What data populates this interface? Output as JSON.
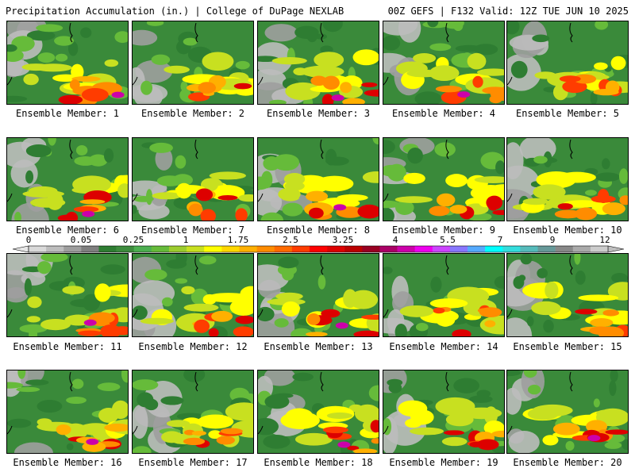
{
  "header": {
    "left": "Precipitation Accumulation (in.) | College of DuPage NEXLAB",
    "right": "00Z GEFS | F132 Valid: 12Z TUE JUN 10 2025"
  },
  "members": [
    {
      "label": "Ensemble Member: 1"
    },
    {
      "label": "Ensemble Member: 2"
    },
    {
      "label": "Ensemble Member: 3"
    },
    {
      "label": "Ensemble Member: 4"
    },
    {
      "label": "Ensemble Member: 5"
    },
    {
      "label": "Ensemble Member: 6"
    },
    {
      "label": "Ensemble Member: 7"
    },
    {
      "label": "Ensemble Member: 8"
    },
    {
      "label": "Ensemble Member: 9"
    },
    {
      "label": "Ensemble Member: 10"
    },
    {
      "label": "Ensemble Member: 11"
    },
    {
      "label": "Ensemble Member: 12"
    },
    {
      "label": "Ensemble Member: 13"
    },
    {
      "label": "Ensemble Member: 14"
    },
    {
      "label": "Ensemble Member: 15"
    },
    {
      "label": "Ensemble Member: 16"
    },
    {
      "label": "Ensemble Member: 17"
    },
    {
      "label": "Ensemble Member: 18"
    },
    {
      "label": "Ensemble Member: 19"
    },
    {
      "label": "Ensemble Member: 20"
    }
  ],
  "colorbar": {
    "tick_labels": [
      "0",
      "0.05",
      "0.25",
      "1",
      "1.75",
      "2.5",
      "3.25",
      "4",
      "5.5",
      "7",
      "9",
      "12"
    ],
    "colors": [
      "#d9d9d9",
      "#bdbdbd",
      "#9e9e9e",
      "#7f7f7f",
      "#2e7d32",
      "#3d8c3d",
      "#4caf50",
      "#66bb3a",
      "#9ccc2e",
      "#c8e020",
      "#ffff00",
      "#ffd700",
      "#ffb000",
      "#ff8c00",
      "#ff6a00",
      "#ff3c00",
      "#ff0000",
      "#dd0000",
      "#bb0000",
      "#990022",
      "#aa0066",
      "#cc00aa",
      "#ee00ee",
      "#cc44ff",
      "#8877ff",
      "#55aaff",
      "#00ffff",
      "#33dddd",
      "#55bbbb",
      "#669999",
      "#888888",
      "#aaaaaa",
      "#cccccc"
    ]
  }
}
